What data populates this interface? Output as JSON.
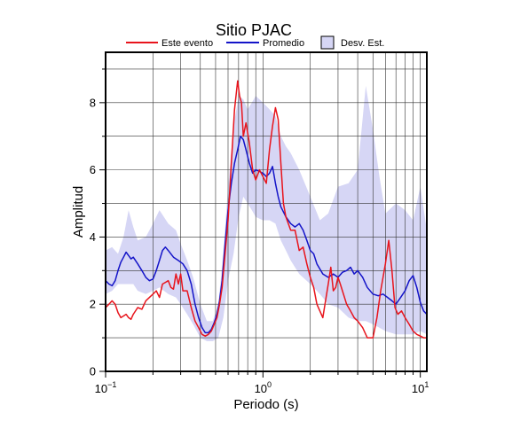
{
  "chart_data": {
    "type": "line",
    "title": "Sitio PJAC",
    "xlabel": "Periodo (s)",
    "ylabel": "Amplitud",
    "xscale": "log",
    "xlim": [
      0.1,
      11
    ],
    "ylim": [
      0,
      9.5
    ],
    "grid": true,
    "legend_position": "top",
    "x_ticks": [
      {
        "value": 0.1,
        "base": "10",
        "exp": "−1"
      },
      {
        "value": 1,
        "base": "10",
        "exp": "0"
      },
      {
        "value": 10,
        "base": "10",
        "exp": "1"
      }
    ],
    "y_ticks": [
      {
        "value": 0,
        "label": "0"
      },
      {
        "value": 2,
        "label": "2"
      },
      {
        "value": 4,
        "label": "4"
      },
      {
        "value": 6,
        "label": "6"
      },
      {
        "value": 8,
        "label": "8"
      }
    ],
    "legend": [
      {
        "label": "Este evento",
        "kind": "line",
        "color": "#e8141c"
      },
      {
        "label": "Promedio",
        "kind": "line",
        "color": "#1414c8"
      },
      {
        "label": "Desv. Est.",
        "kind": "band",
        "color": "#d6d6f5"
      }
    ],
    "band": {
      "name": "Desv. Est.",
      "color": "#d6d6f5",
      "x": [
        0.1,
        0.11,
        0.12,
        0.13,
        0.14,
        0.15,
        0.16,
        0.18,
        0.2,
        0.22,
        0.25,
        0.28,
        0.3,
        0.33,
        0.36,
        0.4,
        0.44,
        0.48,
        0.52,
        0.56,
        0.6,
        0.65,
        0.7,
        0.75,
        0.8,
        0.85,
        0.9,
        1.0,
        1.1,
        1.2,
        1.3,
        1.4,
        1.5,
        1.7,
        2.0,
        2.3,
        2.6,
        3.0,
        3.5,
        4.0,
        4.5,
        5.0,
        5.5,
        6.0,
        7.0,
        8.0,
        9.0,
        10.0,
        11.0
      ],
      "upper": [
        3.6,
        3.7,
        3.5,
        4.0,
        4.8,
        4.3,
        3.9,
        4.0,
        4.4,
        4.8,
        4.4,
        4.2,
        3.8,
        3.3,
        2.8,
        2.0,
        1.5,
        1.5,
        2.0,
        3.5,
        5.5,
        7.3,
        8.2,
        8.1,
        7.8,
        8.0,
        8.2,
        8.0,
        7.8,
        7.6,
        7.0,
        6.7,
        6.5,
        6.0,
        5.2,
        4.5,
        4.7,
        5.5,
        5.6,
        6.0,
        8.5,
        7.2,
        5.8,
        4.7,
        5.0,
        4.8,
        4.5,
        5.5,
        4.2
      ],
      "lower": [
        2.3,
        2.4,
        2.6,
        2.6,
        2.6,
        2.6,
        2.4,
        2.3,
        2.4,
        2.5,
        2.3,
        2.2,
        2.0,
        1.7,
        1.4,
        1.0,
        0.9,
        0.9,
        1.0,
        1.6,
        2.7,
        3.5,
        4.6,
        5.2,
        5.0,
        4.8,
        4.6,
        4.5,
        4.5,
        4.4,
        3.9,
        3.6,
        3.3,
        2.9,
        2.6,
        2.3,
        2.0,
        1.9,
        1.6,
        1.5,
        1.5,
        1.4,
        1.3,
        1.2,
        1.1,
        1.1,
        1.1,
        1.2,
        1.1
      ]
    },
    "series": [
      {
        "name": "Promedio",
        "color": "#1414c8",
        "x": [
          0.1,
          0.105,
          0.11,
          0.115,
          0.12,
          0.125,
          0.13,
          0.135,
          0.14,
          0.145,
          0.15,
          0.16,
          0.17,
          0.18,
          0.19,
          0.2,
          0.21,
          0.22,
          0.23,
          0.24,
          0.25,
          0.27,
          0.29,
          0.31,
          0.33,
          0.35,
          0.37,
          0.39,
          0.41,
          0.43,
          0.45,
          0.47,
          0.49,
          0.51,
          0.53,
          0.55,
          0.57,
          0.6,
          0.63,
          0.66,
          0.69,
          0.72,
          0.75,
          0.78,
          0.82,
          0.86,
          0.9,
          0.95,
          1.0,
          1.05,
          1.1,
          1.15,
          1.2,
          1.25,
          1.3,
          1.4,
          1.5,
          1.6,
          1.7,
          1.8,
          1.9,
          2.0,
          2.1,
          2.2,
          2.4,
          2.6,
          2.8,
          3.0,
          3.2,
          3.4,
          3.6,
          3.8,
          4.0,
          4.3,
          4.6,
          5.0,
          5.4,
          5.8,
          6.2,
          6.6,
          7.0,
          7.5,
          8.0,
          8.5,
          9.0,
          9.5,
          10.0,
          10.5,
          11.0
        ],
        "y": [
          2.7,
          2.6,
          2.55,
          2.7,
          3.0,
          3.25,
          3.4,
          3.55,
          3.45,
          3.35,
          3.4,
          3.2,
          3.0,
          2.8,
          2.7,
          2.75,
          3.0,
          3.3,
          3.6,
          3.7,
          3.6,
          3.4,
          3.3,
          3.2,
          3.0,
          2.6,
          2.0,
          1.6,
          1.3,
          1.15,
          1.15,
          1.25,
          1.45,
          1.7,
          2.1,
          2.7,
          3.6,
          4.8,
          5.6,
          6.2,
          6.6,
          7.0,
          6.9,
          6.6,
          6.2,
          5.9,
          6.0,
          5.95,
          5.9,
          5.8,
          5.9,
          6.1,
          5.6,
          5.2,
          4.9,
          4.6,
          4.4,
          4.3,
          4.4,
          4.2,
          3.9,
          3.6,
          3.5,
          3.2,
          2.9,
          2.8,
          2.9,
          2.8,
          2.95,
          3.0,
          3.1,
          2.9,
          3.0,
          2.8,
          2.5,
          2.3,
          2.25,
          2.3,
          2.2,
          2.1,
          2.0,
          2.2,
          2.4,
          2.7,
          2.85,
          2.5,
          2.05,
          1.8,
          1.7
        ]
      },
      {
        "name": "Este evento",
        "color": "#e8141c",
        "x": [
          0.1,
          0.105,
          0.11,
          0.115,
          0.12,
          0.125,
          0.13,
          0.135,
          0.14,
          0.145,
          0.15,
          0.16,
          0.17,
          0.18,
          0.19,
          0.2,
          0.21,
          0.22,
          0.23,
          0.24,
          0.25,
          0.26,
          0.27,
          0.28,
          0.29,
          0.3,
          0.31,
          0.33,
          0.35,
          0.37,
          0.39,
          0.41,
          0.43,
          0.45,
          0.47,
          0.49,
          0.51,
          0.53,
          0.55,
          0.57,
          0.6,
          0.63,
          0.66,
          0.69,
          0.71,
          0.73,
          0.75,
          0.78,
          0.82,
          0.86,
          0.9,
          0.95,
          1.0,
          1.05,
          1.1,
          1.15,
          1.2,
          1.25,
          1.3,
          1.35,
          1.4,
          1.5,
          1.6,
          1.7,
          1.8,
          1.9,
          2.0,
          2.1,
          2.2,
          2.4,
          2.6,
          2.7,
          2.8,
          2.9,
          3.0,
          3.1,
          3.2,
          3.4,
          3.6,
          3.8,
          4.0,
          4.3,
          4.6,
          5.0,
          5.3,
          5.6,
          6.0,
          6.3,
          6.6,
          6.9,
          7.2,
          7.6,
          8.0,
          8.5,
          9.0,
          9.5,
          10.0,
          10.5,
          11.0
        ],
        "y": [
          1.9,
          2.0,
          2.1,
          2.0,
          1.75,
          1.6,
          1.65,
          1.7,
          1.6,
          1.55,
          1.7,
          1.9,
          1.85,
          2.1,
          2.2,
          2.3,
          2.4,
          2.2,
          2.6,
          2.65,
          2.7,
          2.5,
          2.45,
          2.9,
          2.6,
          2.9,
          2.4,
          2.4,
          1.9,
          1.5,
          1.3,
          1.1,
          1.05,
          1.1,
          1.2,
          1.4,
          1.6,
          2.0,
          2.5,
          3.3,
          4.5,
          6.2,
          7.8,
          8.65,
          8.2,
          8.0,
          7.0,
          7.4,
          6.8,
          6.0,
          5.7,
          6.0,
          5.8,
          5.6,
          6.6,
          7.3,
          7.85,
          7.5,
          6.2,
          5.0,
          4.6,
          4.2,
          4.2,
          3.6,
          3.7,
          3.2,
          2.8,
          2.5,
          2.0,
          1.6,
          2.6,
          3.1,
          2.4,
          2.5,
          2.8,
          2.6,
          2.4,
          2.0,
          1.8,
          1.6,
          1.5,
          1.3,
          1.0,
          1.0,
          1.6,
          2.4,
          3.2,
          3.9,
          3.0,
          1.9,
          1.7,
          1.8,
          1.6,
          1.4,
          1.2,
          1.1,
          1.05,
          1.0,
          1.0
        ]
      }
    ]
  }
}
